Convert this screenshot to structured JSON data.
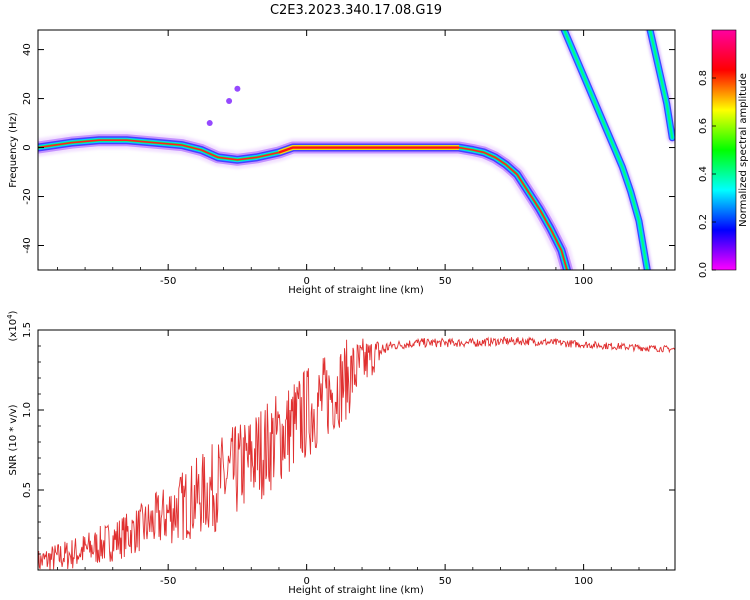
{
  "figure_title": "C2E3.2023.340.17.08.G19",
  "chart_data": [
    {
      "type": "heatmap",
      "xlabel": "Height of straight line (km)",
      "ylabel": "Frequency (Hz)",
      "xlim": [
        -97,
        133
      ],
      "ylim": [
        -50,
        48
      ],
      "x_ticks": [
        -50,
        0,
        50,
        100
      ],
      "y_ticks": [
        -40,
        -20,
        0,
        20,
        40
      ],
      "colorbar": {
        "label": "Normalized spectral amplitude",
        "range": [
          0,
          1
        ],
        "ticks": [
          "0.0",
          "0.2",
          "0.4",
          "0.6",
          "0.8"
        ],
        "colormap": [
          "#ff00ff",
          "#0000ff",
          "#00ffff",
          "#00ff00",
          "#ffff00",
          "#ff0000",
          "#ff00a0"
        ]
      },
      "series": [
        {
          "kind": "main-trace",
          "x": [
            -97,
            -85,
            -75,
            -65,
            -55,
            -45,
            -38,
            -32,
            -25,
            -18,
            -10,
            -5,
            0,
            10,
            20,
            30,
            40,
            50,
            55,
            60,
            64,
            68,
            72,
            76,
            80,
            84,
            88,
            92,
            94
          ],
          "y": [
            0,
            2,
            3,
            3,
            2,
            1,
            -1,
            -4,
            -5,
            -4,
            -2,
            0,
            0,
            0,
            0,
            0,
            0,
            0,
            0,
            -1,
            -2,
            -4,
            -7,
            -11,
            -18,
            -25,
            -33,
            -42,
            -50
          ]
        },
        {
          "kind": "alias-trace-1",
          "x": [
            93,
            96,
            99,
            102,
            105,
            108,
            111,
            114,
            117,
            120,
            123
          ],
          "y": [
            48,
            40,
            32,
            24,
            16,
            8,
            0,
            -8,
            -18,
            -30,
            -50
          ]
        },
        {
          "kind": "alias-trace-2",
          "x": [
            124,
            126,
            128,
            130,
            132
          ],
          "y": [
            48,
            38,
            28,
            18,
            4
          ]
        }
      ],
      "scatter_points": [
        {
          "x": -28,
          "y": 19
        },
        {
          "x": -25,
          "y": 24
        },
        {
          "x": -35,
          "y": 10
        }
      ]
    },
    {
      "type": "line",
      "xlabel": "Height of straight line (km)",
      "ylabel": "SNR (10 * v/v)",
      "yscale_note": "(x10",
      "yscale_exp": "4",
      "yscale_close": ")",
      "xlim": [
        -97,
        133
      ],
      "ylim": [
        0,
        1.5
      ],
      "x_ticks": [
        -50,
        0,
        50,
        100
      ],
      "y_ticks": [
        "0.5",
        "1.0",
        "1.5"
      ],
      "y_tick_values": [
        0.5,
        1.0,
        1.5
      ],
      "color": "#e03030",
      "envelope": {
        "x": [
          -97,
          -85,
          -75,
          -65,
          -55,
          -45,
          -35,
          -25,
          -15,
          -5,
          0,
          5,
          10,
          15,
          20,
          25,
          30,
          40,
          50,
          60,
          70,
          80,
          90,
          100,
          110,
          120,
          133
        ],
        "y": [
          0.05,
          0.1,
          0.15,
          0.22,
          0.3,
          0.4,
          0.5,
          0.62,
          0.76,
          0.9,
          0.98,
          1.05,
          1.12,
          1.2,
          1.28,
          1.35,
          1.4,
          1.42,
          1.42,
          1.42,
          1.43,
          1.43,
          1.42,
          1.41,
          1.4,
          1.39,
          1.38
        ]
      },
      "noise": {
        "x": [
          -97,
          -60,
          -30,
          0,
          15,
          30,
          133
        ],
        "amp": [
          0.08,
          0.15,
          0.3,
          0.3,
          0.25,
          0.03,
          0.02
        ]
      }
    }
  ]
}
